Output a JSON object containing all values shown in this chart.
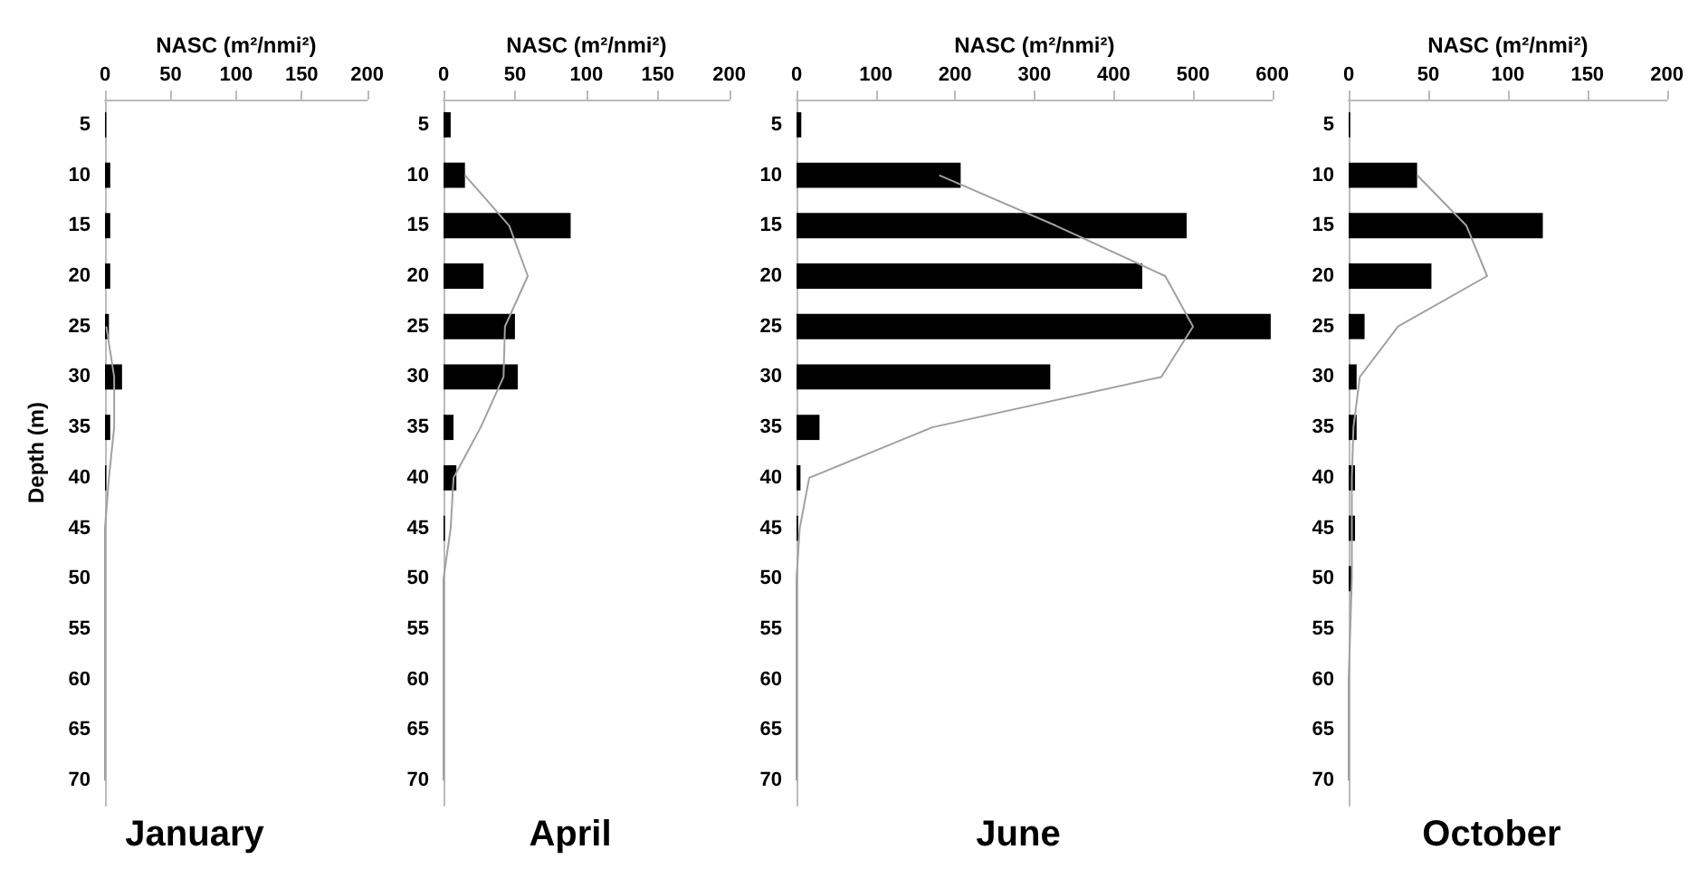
{
  "chart_data": [
    {
      "type": "bar",
      "orientation": "horizontal",
      "title": "January",
      "xlabel": "NASC (m²/nmi²)",
      "ylabel": "Depth (m)",
      "categories": [
        "5",
        "10",
        "15",
        "20",
        "25",
        "30",
        "35",
        "40",
        "45",
        "50",
        "55",
        "60",
        "65",
        "70"
      ],
      "xlim": [
        0,
        200
      ],
      "xticks": [
        0,
        50,
        100,
        150,
        200
      ],
      "grid": false,
      "series": [
        {
          "color": "#000000",
          "values": [
            1,
            4,
            4,
            4,
            3,
            13,
            4,
            1,
            0,
            0,
            0,
            0,
            0,
            0
          ]
        },
        {
          "type": "line",
          "marker": "none",
          "color": "#a0a0a0",
          "values": [
            null,
            null,
            null,
            null,
            1,
            7,
            7,
            3,
            0,
            0,
            0,
            0,
            0,
            0
          ]
        }
      ]
    },
    {
      "type": "bar",
      "orientation": "horizontal",
      "title": "April",
      "xlabel": "NASC (m²/nmi²)",
      "categories": [
        "5",
        "10",
        "15",
        "20",
        "25",
        "30",
        "35",
        "40",
        "45",
        "50",
        "55",
        "60",
        "65",
        "70"
      ],
      "xlim": [
        0,
        200
      ],
      "xticks": [
        0,
        50,
        100,
        150,
        200
      ],
      "grid": false,
      "series": [
        {
          "color": "#000000",
          "values": [
            5,
            15,
            89,
            28,
            50,
            52,
            7,
            9,
            1,
            0,
            0,
            0,
            0,
            0
          ]
        },
        {
          "type": "line",
          "marker": "none",
          "color": "#a0a0a0",
          "values": [
            null,
            15,
            46,
            59,
            43,
            42,
            26,
            7,
            5,
            0,
            0,
            0,
            0,
            0
          ]
        }
      ]
    },
    {
      "type": "bar",
      "orientation": "horizontal",
      "title": "June",
      "xlabel": "NASC (m²/nmi²)",
      "categories": [
        "5",
        "10",
        "15",
        "20",
        "25",
        "30",
        "35",
        "40",
        "45",
        "50",
        "55",
        "60",
        "65",
        "70"
      ],
      "xlim": [
        0,
        600
      ],
      "xticks": [
        0,
        100,
        200,
        300,
        400,
        500,
        600
      ],
      "grid": false,
      "series": [
        {
          "color": "#000000",
          "values": [
            6,
            207,
            492,
            436,
            598,
            320,
            29,
            5,
            2,
            0,
            0,
            0,
            0,
            0
          ]
        },
        {
          "type": "line",
          "marker": "none",
          "color": "#a0a0a0",
          "values": [
            null,
            180,
            327,
            465,
            500,
            460,
            171,
            16,
            4,
            0,
            0,
            0,
            0,
            0
          ]
        }
      ]
    },
    {
      "type": "bar",
      "orientation": "horizontal",
      "title": "October",
      "xlabel": "NASC (m²/nmi²)",
      "categories": [
        "5",
        "10",
        "15",
        "20",
        "25",
        "30",
        "35",
        "40",
        "45",
        "50",
        "55",
        "60",
        "65",
        "70"
      ],
      "xlim": [
        0,
        200
      ],
      "xticks": [
        0,
        50,
        100,
        150,
        200
      ],
      "grid": false,
      "series": [
        {
          "color": "#000000",
          "values": [
            1,
            43,
            122,
            52,
            10,
            5,
            5,
            4,
            4,
            2,
            0,
            0,
            0,
            0
          ]
        },
        {
          "type": "line",
          "marker": "none",
          "color": "#a0a0a0",
          "values": [
            null,
            43,
            74,
            87,
            31,
            7,
            3,
            2,
            2,
            2,
            1,
            0,
            0,
            0
          ]
        }
      ]
    }
  ]
}
